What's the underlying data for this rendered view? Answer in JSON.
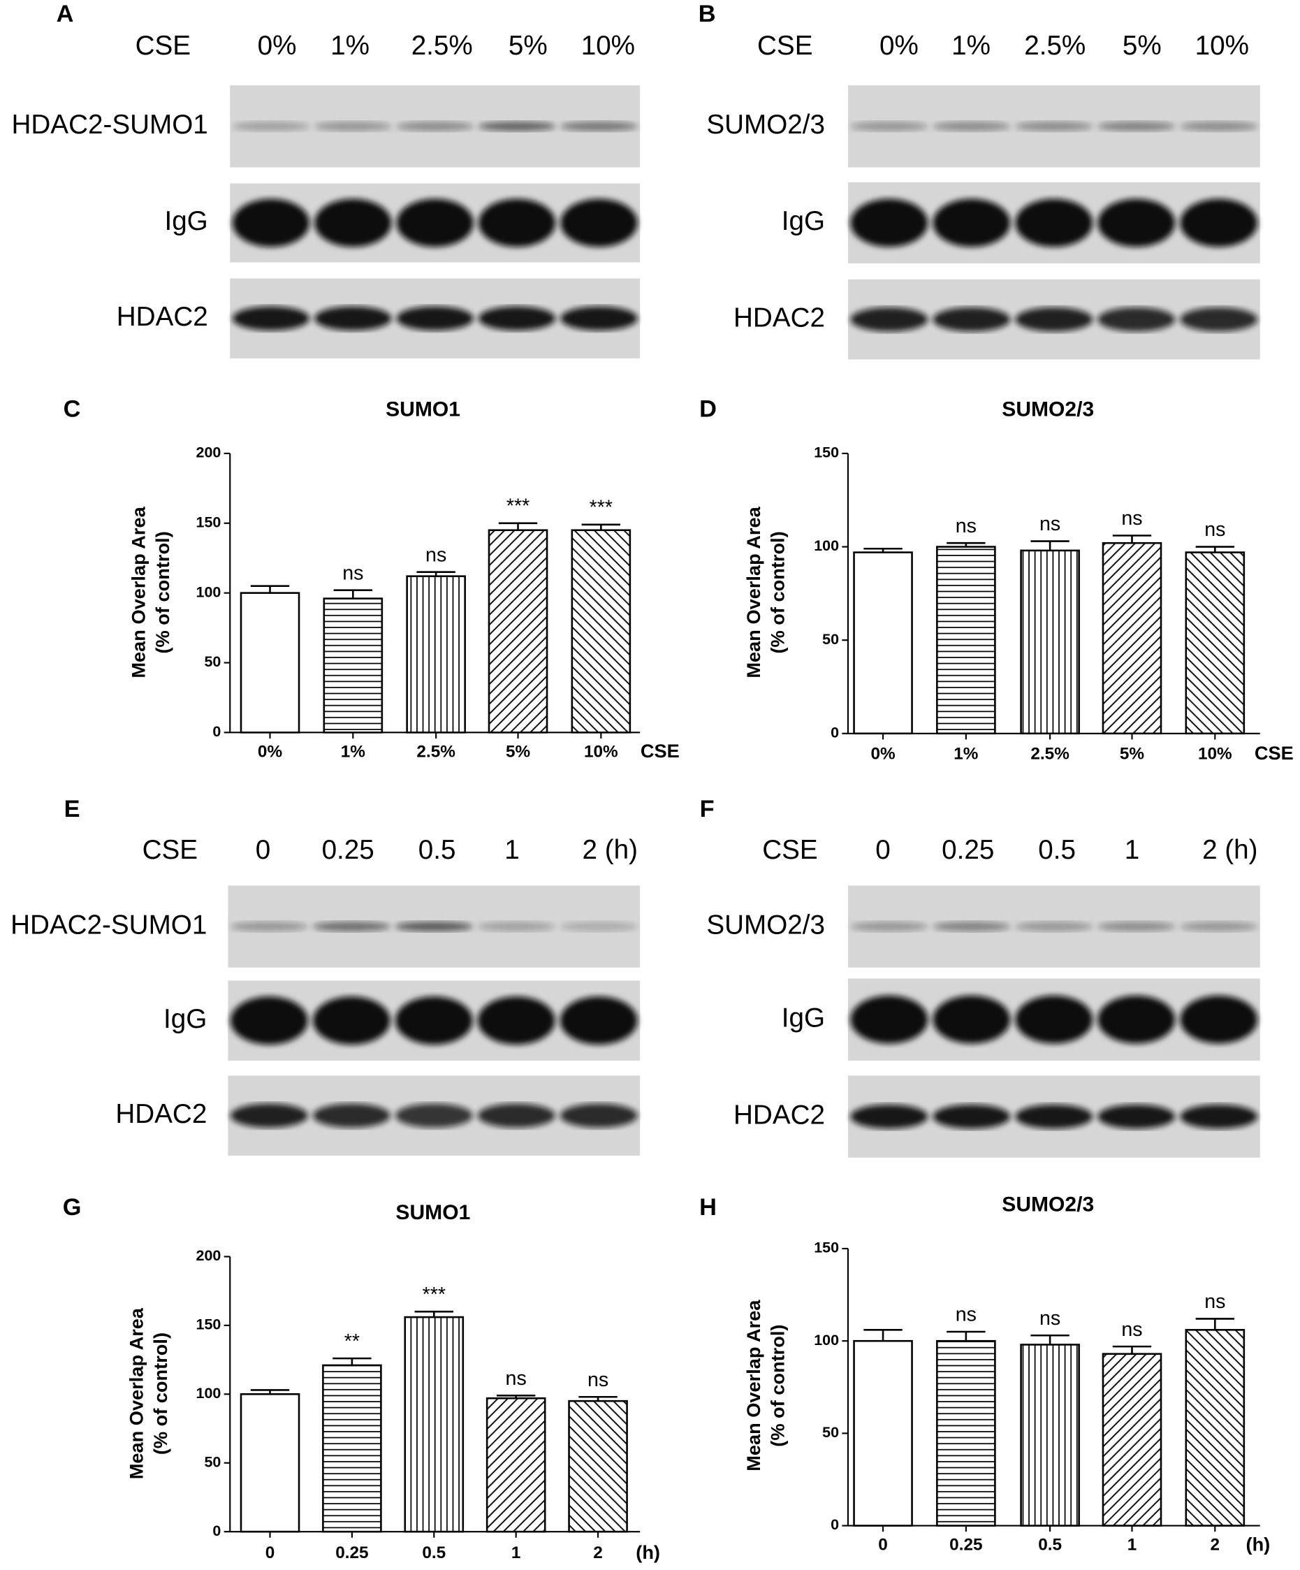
{
  "blots": [
    {
      "panel": "A",
      "header": "CSE",
      "lanes": [
        "0%",
        "1%",
        "2.5%",
        "5%",
        "10%"
      ],
      "rows": [
        "HDAC2-SUMO1",
        "IgG",
        "HDAC2"
      ]
    },
    {
      "panel": "B",
      "header": "CSE",
      "lanes": [
        "0%",
        "1%",
        "2.5%",
        "5%",
        "10%"
      ],
      "rows": [
        "SUMO2/3",
        "IgG",
        "HDAC2"
      ]
    },
    {
      "panel": "E",
      "header": "CSE",
      "lanes": [
        "0",
        "0.25",
        "0.5",
        "1",
        "2 (h)"
      ],
      "rows": [
        "HDAC2-SUMO1",
        "IgG",
        "HDAC2"
      ]
    },
    {
      "panel": "F",
      "header": "CSE",
      "lanes": [
        "0",
        "0.25",
        "0.5",
        "1",
        "2 (h)"
      ],
      "rows": [
        "SUMO2/3",
        "IgG",
        "HDAC2"
      ]
    }
  ],
  "chart_data": [
    {
      "type": "bar",
      "panel": "C",
      "title": "SUMO1",
      "ylabel": [
        "Mean Overlap Area",
        "(% of control)"
      ],
      "xlabel": "CSE",
      "categories": [
        "0%",
        "1%",
        "2.5%",
        "5%",
        "10%"
      ],
      "values": [
        100,
        96,
        112,
        145,
        145
      ],
      "errors": [
        5,
        6,
        3,
        5,
        4
      ],
      "annotations": [
        null,
        "ns",
        "ns",
        "***",
        "***"
      ],
      "patterns": [
        "none",
        "horizontal",
        "vertical",
        "diagonal-right",
        "diagonal-left"
      ],
      "color": "#000000",
      "ylim": [
        0,
        200
      ],
      "yticks": [
        0,
        50,
        100,
        150,
        200
      ]
    },
    {
      "type": "bar",
      "panel": "D",
      "title": "SUMO2/3",
      "ylabel": [
        "Mean Overlap Area",
        "(% of control)"
      ],
      "xlabel": "CSE",
      "categories": [
        "0%",
        "1%",
        "2.5%",
        "5%",
        "10%"
      ],
      "values": [
        97,
        100,
        98,
        102,
        97
      ],
      "errors": [
        2,
        2,
        5,
        4,
        3
      ],
      "annotations": [
        null,
        "ns",
        "ns",
        "ns",
        "ns"
      ],
      "patterns": [
        "none",
        "horizontal",
        "vertical",
        "diagonal-right",
        "diagonal-left"
      ],
      "color": "#000000",
      "ylim": [
        0,
        150
      ],
      "yticks": [
        0,
        50,
        100,
        150
      ]
    },
    {
      "type": "bar",
      "panel": "G",
      "title": "SUMO1",
      "ylabel": [
        "Mean Overlap Area",
        "(% of control)"
      ],
      "xlabel": "(h)",
      "categories": [
        "0",
        "0.25",
        "0.5",
        "1",
        "2"
      ],
      "values": [
        100,
        121,
        156,
        97,
        95
      ],
      "errors": [
        3,
        5,
        4,
        2,
        3
      ],
      "annotations": [
        null,
        "**",
        "***",
        "ns",
        "ns"
      ],
      "patterns": [
        "none",
        "horizontal",
        "vertical",
        "diagonal-right",
        "diagonal-left"
      ],
      "color": "#000000",
      "ylim": [
        0,
        200
      ],
      "yticks": [
        0,
        50,
        100,
        150,
        200
      ]
    },
    {
      "type": "bar",
      "panel": "H",
      "title": "SUMO2/3",
      "ylabel": [
        "Mean Overlap Area",
        "(% of control)"
      ],
      "xlabel": "(h)",
      "categories": [
        "0",
        "0.25",
        "0.5",
        "1",
        "2"
      ],
      "values": [
        100,
        100,
        98,
        93,
        106
      ],
      "errors": [
        6,
        5,
        5,
        4,
        6
      ],
      "annotations": [
        null,
        "ns",
        "ns",
        "ns",
        "ns"
      ],
      "patterns": [
        "none",
        "horizontal",
        "vertical",
        "diagonal-right",
        "diagonal-left"
      ],
      "color": "#000000",
      "ylim": [
        0,
        150
      ],
      "yticks": [
        0,
        50,
        100,
        150
      ]
    }
  ]
}
